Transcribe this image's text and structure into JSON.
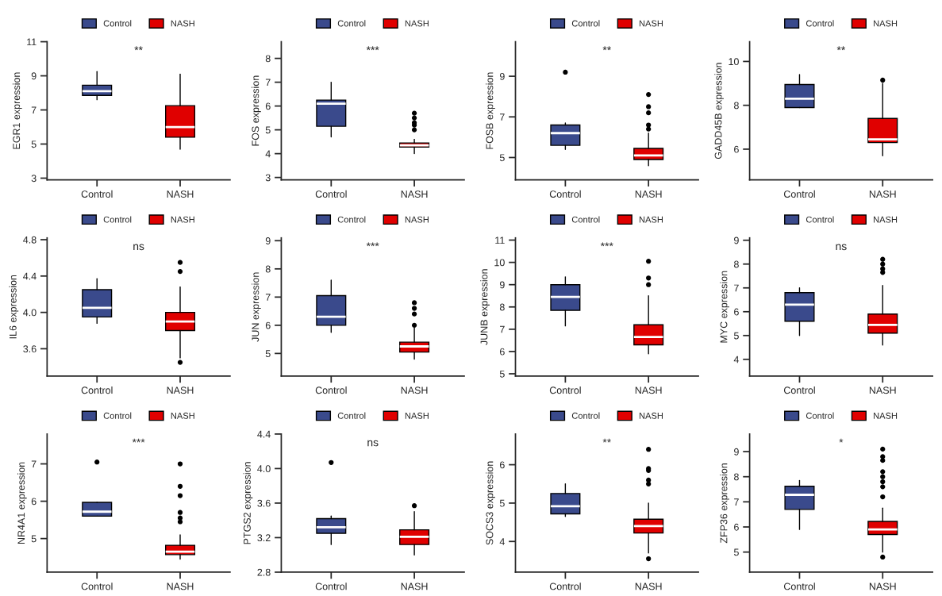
{
  "chart_data": [
    {
      "type": "box",
      "categories": [
        "Control",
        "NASH"
      ],
      "ylabel": "EGR1 expression",
      "ylim": [
        2.9,
        11
      ],
      "yticks": [
        3,
        5,
        7,
        9,
        11
      ],
      "legend": "top",
      "annotations": [
        "**"
      ],
      "series": [
        {
          "name": "Control",
          "color": "#3a4a8c",
          "boxes": [
            {
              "low": 7.6,
              "q1": 7.85,
              "median": 8.1,
              "q3": 8.45,
              "high": 9.25
            },
            null
          ]
        },
        {
          "name": "NASH",
          "color": "#e00000",
          "boxes": [
            null,
            {
              "low": 4.7,
              "q1": 5.4,
              "median": 6.0,
              "q3": 7.25,
              "high": 9.1
            }
          ]
        }
      ]
    },
    {
      "type": "box",
      "categories": [
        "Control",
        "NASH"
      ],
      "ylabel": "FOS expression",
      "ylim": [
        2.9,
        8.7
      ],
      "yticks": [
        3,
        4,
        5,
        6,
        7,
        8
      ],
      "legend": "top",
      "annotations": [
        "***"
      ],
      "series": [
        {
          "name": "Control",
          "color": "#3a4a8c",
          "boxes": [
            {
              "low": 4.7,
              "q1": 5.15,
              "median": 6.1,
              "q3": 6.25,
              "high": 7.0
            },
            null
          ]
        },
        {
          "name": "NASH",
          "color": "#e00000",
          "boxes": [
            null,
            {
              "low": 4.0,
              "q1": 4.28,
              "median": 4.35,
              "q3": 4.45,
              "high": 4.6,
              "outliers": [
                5.0,
                5.2,
                5.3,
                5.5,
                5.7
              ]
            }
          ]
        }
      ]
    },
    {
      "type": "box",
      "categories": [
        "Control",
        "NASH"
      ],
      "ylabel": "FOSB expression",
      "ylim": [
        3.9,
        10.7
      ],
      "yticks": [
        5,
        7,
        9
      ],
      "legend": "top",
      "annotations": [
        "**"
      ],
      "series": [
        {
          "name": "Control",
          "color": "#3a4a8c",
          "boxes": [
            {
              "low": 5.4,
              "q1": 5.6,
              "median": 6.2,
              "q3": 6.6,
              "high": 6.7,
              "outliers": [
                9.2
              ]
            },
            null
          ]
        },
        {
          "name": "NASH",
          "color": "#e00000",
          "boxes": [
            null,
            {
              "low": 4.6,
              "q1": 4.9,
              "median": 5.1,
              "q3": 5.45,
              "high": 6.2,
              "outliers": [
                6.4,
                6.6,
                7.2,
                7.5,
                8.1
              ]
            }
          ]
        }
      ]
    },
    {
      "type": "box",
      "categories": [
        "Control",
        "NASH"
      ],
      "ylabel": "GADD45B expression",
      "ylim": [
        4.6,
        10.9
      ],
      "yticks": [
        6,
        8,
        10
      ],
      "legend": "top",
      "annotations": [
        "**"
      ],
      "series": [
        {
          "name": "Control",
          "color": "#3a4a8c",
          "boxes": [
            {
              "low": 7.9,
              "q1": 7.9,
              "median": 8.3,
              "q3": 8.95,
              "high": 9.4
            },
            null
          ]
        },
        {
          "name": "NASH",
          "color": "#e00000",
          "boxes": [
            null,
            {
              "low": 5.7,
              "q1": 6.3,
              "median": 6.45,
              "q3": 7.4,
              "high": 9.0,
              "outliers": [
                9.15
              ]
            }
          ]
        }
      ]
    },
    {
      "type": "box",
      "categories": [
        "Control",
        "NASH"
      ],
      "ylabel": "IL6 expression",
      "ylim": [
        3.3,
        4.82
      ],
      "yticks": [
        3.6,
        {
          "value": 4,
          "label": "4.0"
        },
        4.4,
        4.8
      ],
      "legend": "top",
      "annotations": [
        "ns"
      ],
      "series": [
        {
          "name": "Control",
          "color": "#3a4a8c",
          "boxes": [
            {
              "low": 3.88,
              "q1": 3.95,
              "median": 4.05,
              "q3": 4.25,
              "high": 4.37
            },
            null
          ]
        },
        {
          "name": "NASH",
          "color": "#e00000",
          "boxes": [
            null,
            {
              "low": 3.5,
              "q1": 3.8,
              "median": 3.9,
              "q3": 4.0,
              "high": 4.28,
              "outliers": [
                3.45,
                4.45,
                4.55
              ]
            }
          ]
        }
      ]
    },
    {
      "type": "box",
      "categories": [
        "Control",
        "NASH"
      ],
      "ylabel": "JUN expression",
      "ylim": [
        4.2,
        9.1
      ],
      "yticks": [
        5,
        6,
        7,
        8,
        9
      ],
      "legend": "top",
      "annotations": [
        "***"
      ],
      "series": [
        {
          "name": "Control",
          "color": "#3a4a8c",
          "boxes": [
            {
              "low": 5.75,
              "q1": 6.0,
              "median": 6.3,
              "q3": 7.05,
              "high": 7.6
            },
            null
          ]
        },
        {
          "name": "NASH",
          "color": "#e00000",
          "boxes": [
            null,
            {
              "low": 4.8,
              "q1": 5.05,
              "median": 5.25,
              "q3": 5.4,
              "high": 5.9,
              "outliers": [
                6.0,
                6.4,
                6.6,
                6.8
              ]
            }
          ]
        }
      ]
    },
    {
      "type": "box",
      "categories": [
        "Control",
        "NASH"
      ],
      "ylabel": "JUNB expression",
      "ylim": [
        4.9,
        11.1
      ],
      "yticks": [
        5,
        6,
        7,
        8,
        9,
        10,
        11
      ],
      "legend": "top",
      "annotations": [
        "***"
      ],
      "series": [
        {
          "name": "Control",
          "color": "#3a4a8c",
          "boxes": [
            {
              "low": 7.15,
              "q1": 7.85,
              "median": 8.45,
              "q3": 9.0,
              "high": 9.35
            },
            null
          ]
        },
        {
          "name": "NASH",
          "color": "#e00000",
          "boxes": [
            null,
            {
              "low": 5.9,
              "q1": 6.3,
              "median": 6.65,
              "q3": 7.2,
              "high": 8.5,
              "outliers": [
                9.0,
                9.3,
                10.05
              ]
            }
          ]
        }
      ]
    },
    {
      "type": "box",
      "categories": [
        "Control",
        "NASH"
      ],
      "ylabel": "MYC expression",
      "ylim": [
        3.3,
        9.1
      ],
      "yticks": [
        4,
        5,
        6,
        7,
        8,
        9
      ],
      "legend": "top",
      "annotations": [
        "ns"
      ],
      "series": [
        {
          "name": "Control",
          "color": "#3a4a8c",
          "boxes": [
            {
              "low": 5.0,
              "q1": 5.6,
              "median": 6.3,
              "q3": 6.8,
              "high": 7.0
            },
            null
          ]
        },
        {
          "name": "NASH",
          "color": "#e00000",
          "boxes": [
            null,
            {
              "low": 4.6,
              "q1": 5.1,
              "median": 5.45,
              "q3": 5.9,
              "high": 7.1,
              "outliers": [
                7.65,
                7.8,
                8.0,
                8.2
              ]
            }
          ]
        }
      ]
    },
    {
      "type": "box",
      "categories": [
        "Control",
        "NASH"
      ],
      "ylabel": "NR4A1 expression",
      "ylim": [
        4.1,
        7.8
      ],
      "yticks": [
        5,
        6,
        7
      ],
      "legend": "top",
      "annotations": [
        "***"
      ],
      "series": [
        {
          "name": "Control",
          "color": "#3a4a8c",
          "boxes": [
            {
              "low": 5.6,
              "q1": 5.6,
              "median": 5.72,
              "q3": 5.97,
              "high": 5.97,
              "outliers": [
                7.05
              ]
            },
            null
          ]
        },
        {
          "name": "NASH",
          "color": "#e00000",
          "boxes": [
            null,
            {
              "low": 4.45,
              "q1": 4.57,
              "median": 4.65,
              "q3": 4.82,
              "high": 5.1,
              "outliers": [
                5.45,
                5.55,
                5.7,
                6.15,
                6.4,
                7.0
              ]
            }
          ]
        }
      ]
    },
    {
      "type": "box",
      "categories": [
        "Control",
        "NASH"
      ],
      "ylabel": "PTGS2 expression",
      "ylim": [
        2.8,
        4.4
      ],
      "yticks": [
        2.8,
        3.2,
        3.6,
        {
          "value": 4,
          "label": "4.0"
        },
        4.4
      ],
      "legend": "top",
      "annotations": [
        "ns"
      ],
      "series": [
        {
          "name": "Control",
          "color": "#3a4a8c",
          "boxes": [
            {
              "low": 3.12,
              "q1": 3.25,
              "median": 3.32,
              "q3": 3.42,
              "high": 3.45,
              "outliers": [
                4.07
              ]
            },
            null
          ]
        },
        {
          "name": "NASH",
          "color": "#e00000",
          "boxes": [
            null,
            {
              "low": 3.0,
              "q1": 3.12,
              "median": 3.21,
              "q3": 3.29,
              "high": 3.5,
              "outliers": [
                3.57
              ]
            }
          ]
        }
      ]
    },
    {
      "type": "box",
      "categories": [
        "Control",
        "NASH"
      ],
      "ylabel": "SOCS3 expression",
      "ylim": [
        3.2,
        6.8
      ],
      "yticks": [
        4,
        5,
        6
      ],
      "legend": "top",
      "annotations": [
        "**"
      ],
      "series": [
        {
          "name": "Control",
          "color": "#3a4a8c",
          "boxes": [
            {
              "low": 4.65,
              "q1": 4.72,
              "median": 4.92,
              "q3": 5.25,
              "high": 5.5
            },
            null
          ]
        },
        {
          "name": "NASH",
          "color": "#e00000",
          "boxes": [
            null,
            {
              "low": 3.7,
              "q1": 4.22,
              "median": 4.4,
              "q3": 4.58,
              "high": 5.0,
              "outliers": [
                3.55,
                5.5,
                5.6,
                5.85,
                5.9,
                6.4
              ]
            }
          ]
        }
      ]
    },
    {
      "type": "box",
      "categories": [
        "Control",
        "NASH"
      ],
      "ylabel": "ZFP36 expression",
      "ylim": [
        4.2,
        9.7
      ],
      "yticks": [
        5,
        6,
        7,
        8,
        9
      ],
      "legend": "top",
      "annotations": [
        "*"
      ],
      "series": [
        {
          "name": "Control",
          "color": "#3a4a8c",
          "boxes": [
            {
              "low": 5.9,
              "q1": 6.7,
              "median": 7.28,
              "q3": 7.62,
              "high": 7.85
            },
            null
          ]
        },
        {
          "name": "NASH",
          "color": "#e00000",
          "boxes": [
            null,
            {
              "low": 5.0,
              "q1": 5.7,
              "median": 5.9,
              "q3": 6.22,
              "high": 6.75,
              "outliers": [
                4.8,
                7.2,
                7.6,
                7.8,
                8.0,
                8.2,
                8.65,
                8.8,
                9.1
              ]
            }
          ]
        }
      ]
    }
  ]
}
